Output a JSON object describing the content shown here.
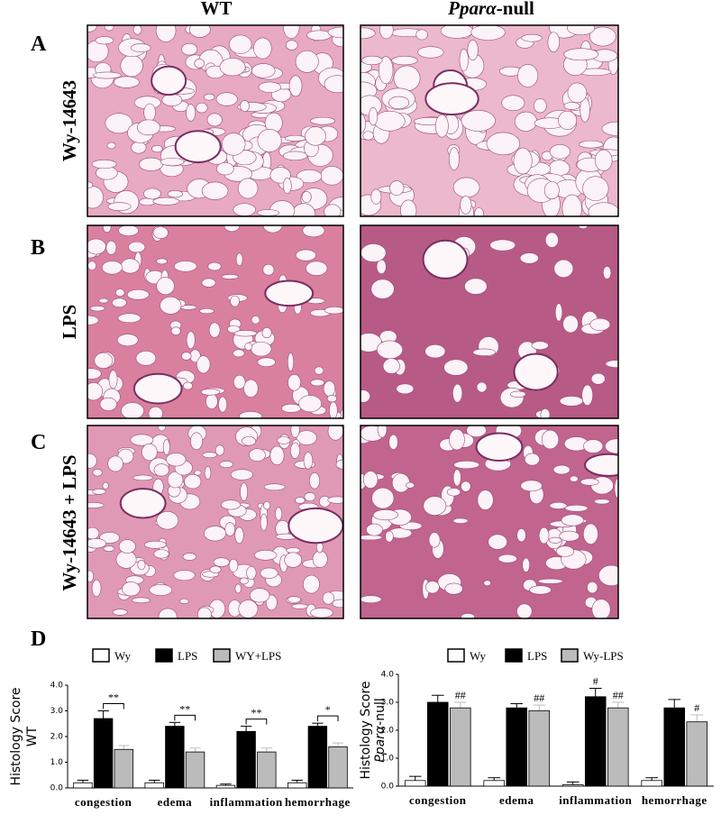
{
  "figure": {
    "column_titles": [
      "WT",
      [
        "Pparα",
        "-null"
      ]
    ],
    "panel_labels": [
      "A",
      "B",
      "C",
      "D"
    ],
    "row_labels": [
      "Wy-14643",
      "LPS",
      "Wy-14643 + LPS"
    ]
  },
  "chart_data": [
    {
      "type": "bar",
      "ylabel": [
        "Histology Score",
        "WT"
      ],
      "categories": [
        "congestion",
        "edema",
        "inflammation",
        "hemorrhage"
      ],
      "series": [
        {
          "name": "Wy",
          "color": "#ffffff",
          "values": [
            0.2,
            0.2,
            0.1,
            0.2
          ],
          "errors": [
            0.1,
            0.1,
            0.05,
            0.1
          ]
        },
        {
          "name": "LPS",
          "color": "#000000",
          "values": [
            2.7,
            2.4,
            2.2,
            2.4
          ],
          "errors": [
            0.3,
            0.15,
            0.2,
            0.12
          ]
        },
        {
          "name": "WY+LPS",
          "color": "#bbbbbb",
          "values": [
            1.5,
            1.4,
            1.4,
            1.6
          ],
          "errors": [
            0.15,
            0.15,
            0.15,
            0.15
          ]
        }
      ],
      "significance": [
        "**",
        "**",
        "**",
        "*"
      ],
      "ylim": [
        0,
        4
      ],
      "yticks": [
        {
          "value": 0,
          "label": "0.0"
        },
        {
          "value": 1,
          "label": "1.0"
        },
        {
          "value": 2,
          "label": "2.0"
        },
        {
          "value": 3,
          "label": "3.0"
        },
        {
          "value": 4,
          "label": "4.0"
        }
      ]
    },
    {
      "type": "bar",
      "ylabel": [
        "Histology Score",
        [
          "Pparα",
          "-null"
        ]
      ],
      "categories": [
        "congestion",
        "edema",
        "inflammation",
        "hemorrhage"
      ],
      "series": [
        {
          "name": "Wy",
          "color": "#ffffff",
          "values": [
            0.2,
            0.2,
            0.05,
            0.2
          ],
          "errors": [
            0.15,
            0.1,
            0.1,
            0.1
          ]
        },
        {
          "name": "LPS",
          "color": "#000000",
          "values": [
            3.0,
            2.8,
            3.2,
            2.8
          ],
          "errors": [
            0.25,
            0.15,
            0.3,
            0.3
          ],
          "marks": [
            null,
            null,
            "#",
            null
          ]
        },
        {
          "name": "Wy-LPS",
          "color": "#bbbbbb",
          "values": [
            2.8,
            2.7,
            2.8,
            2.3
          ],
          "errors": [
            0.2,
            0.2,
            0.2,
            0.25
          ],
          "marks": [
            "##",
            "##",
            "##",
            "#"
          ]
        }
      ],
      "ylim": [
        0,
        4
      ],
      "yticks": [
        {
          "value": 0,
          "label": "0.0"
        },
        {
          "value": 1,
          "label": "1.0"
        },
        {
          "value": 2,
          "label": "2.0"
        },
        {
          "value": 3,
          "label": "3.0"
        },
        {
          "value": 4,
          "label": "4.0"
        }
      ]
    }
  ]
}
